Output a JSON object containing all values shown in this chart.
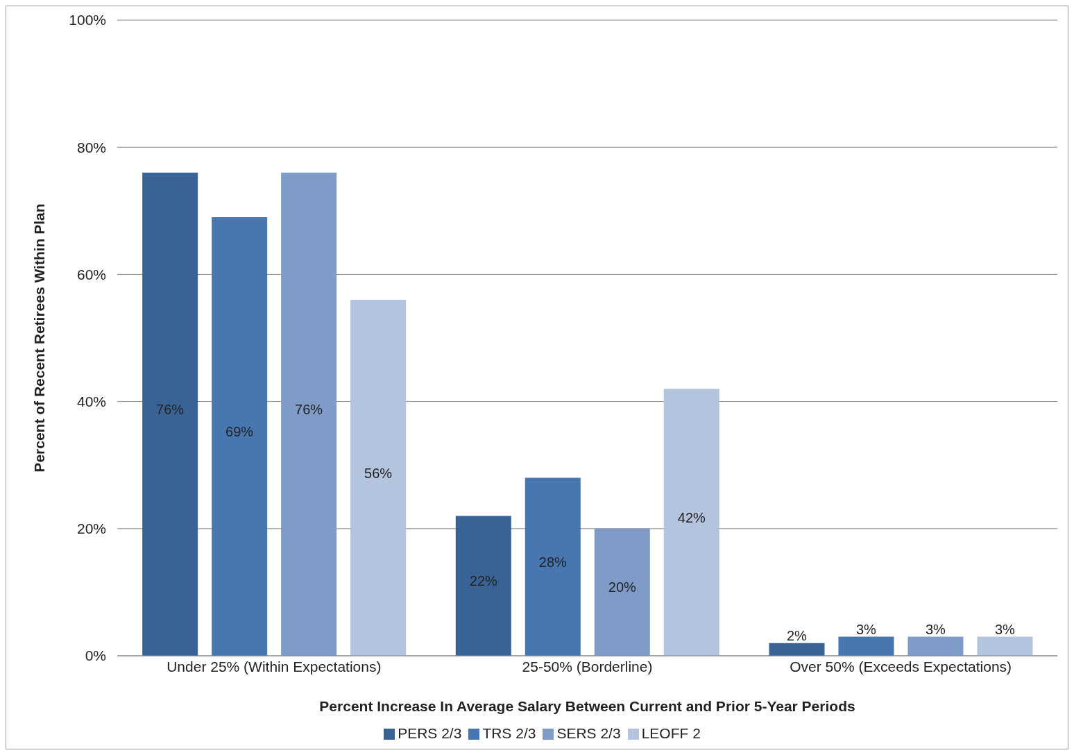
{
  "chart_data": {
    "type": "bar",
    "xlabel": "Percent Increase In Average Salary Between Current and Prior 5-Year Periods",
    "ylabel": "Percent of Recent Retirees Within Plan",
    "categories": [
      "Under 25% (Within Expectations)",
      "25-50% (Borderline)",
      "Over 50% (Exceeds Expectations)"
    ],
    "series": [
      {
        "name": "PERS 2/3",
        "color": "#3a6395",
        "values": [
          76,
          22,
          2
        ],
        "value_labels": [
          "76%",
          "22%",
          "2%"
        ]
      },
      {
        "name": "TRS 2/3",
        "color": "#4876b0",
        "values": [
          69,
          28,
          3
        ],
        "value_labels": [
          "69%",
          "28%",
          "3%"
        ]
      },
      {
        "name": "SERS 2/3",
        "color": "#7f9cc8",
        "values": [
          76,
          20,
          3
        ],
        "value_labels": [
          "76%",
          "20%",
          "3%"
        ]
      },
      {
        "name": "LEOFF 2",
        "color": "#b5c4de",
        "values": [
          56,
          42,
          3
        ],
        "value_labels": [
          "56%",
          "42%",
          "3%"
        ]
      }
    ],
    "ylim": [
      0,
      100
    ],
    "yticks": [
      {
        "value": 0,
        "label": "0%"
      },
      {
        "value": 20,
        "label": "20%"
      },
      {
        "value": 40,
        "label": "40%"
      },
      {
        "value": 60,
        "label": "60%"
      },
      {
        "value": 80,
        "label": "80%"
      },
      {
        "value": 100,
        "label": "100%"
      }
    ],
    "grid": "y",
    "legend": "bottom"
  }
}
